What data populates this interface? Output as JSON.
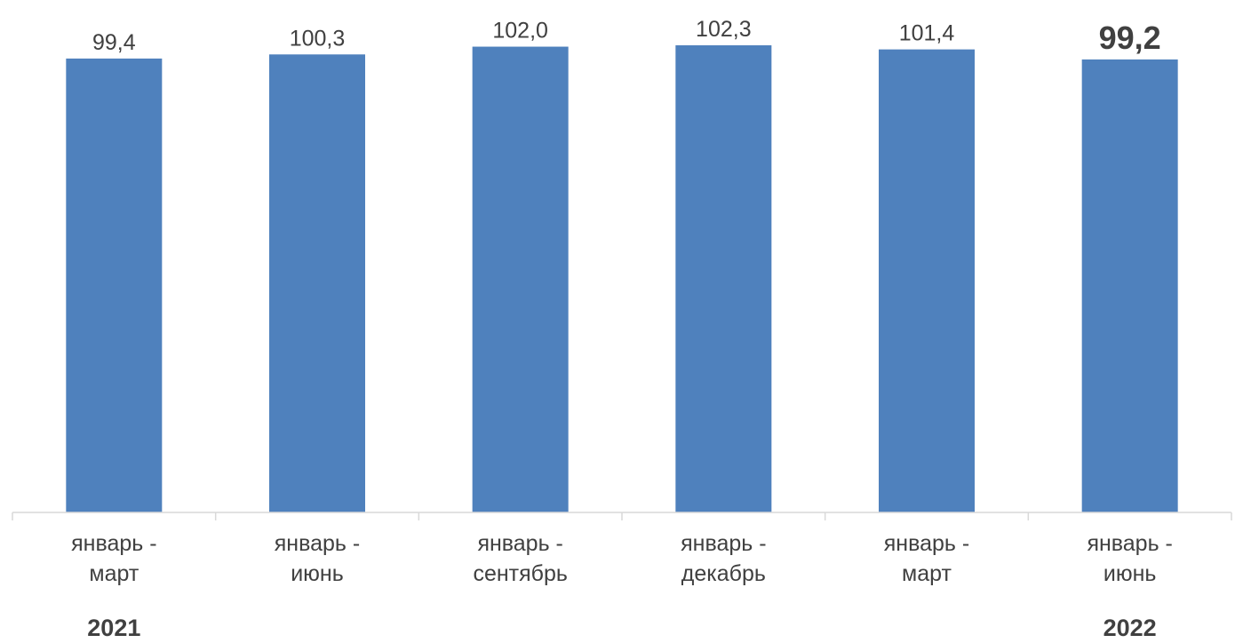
{
  "chart_data": {
    "type": "bar",
    "categories": [
      [
        "январь -",
        "март"
      ],
      [
        "январь -",
        "июнь"
      ],
      [
        "январь -",
        "сентябрь"
      ],
      [
        "январь -",
        "декабрь"
      ],
      [
        "январь -",
        "март"
      ],
      [
        "январь -",
        "июнь"
      ]
    ],
    "values": [
      99.4,
      100.3,
      102.0,
      102.3,
      101.4,
      99.2
    ],
    "value_labels": [
      "99,4",
      "100,3",
      "102,0",
      "102,3",
      "101,4",
      "99,2"
    ],
    "highlight_index": 5,
    "year_groups": [
      {
        "label": "2021",
        "categories": [
          0,
          1,
          2,
          3
        ]
      },
      {
        "label": "2022",
        "categories": [
          4,
          5
        ]
      }
    ],
    "years": [
      "2021",
      "2022"
    ],
    "title": "",
    "xlabel": "",
    "ylabel": "",
    "ylim": [
      0,
      102.3
    ],
    "grid": false,
    "legend": "none"
  },
  "colors": {
    "bar": "#4f81bd",
    "axis": "#d9d9d9",
    "text": "#404040",
    "highlight": "#c00000"
  }
}
